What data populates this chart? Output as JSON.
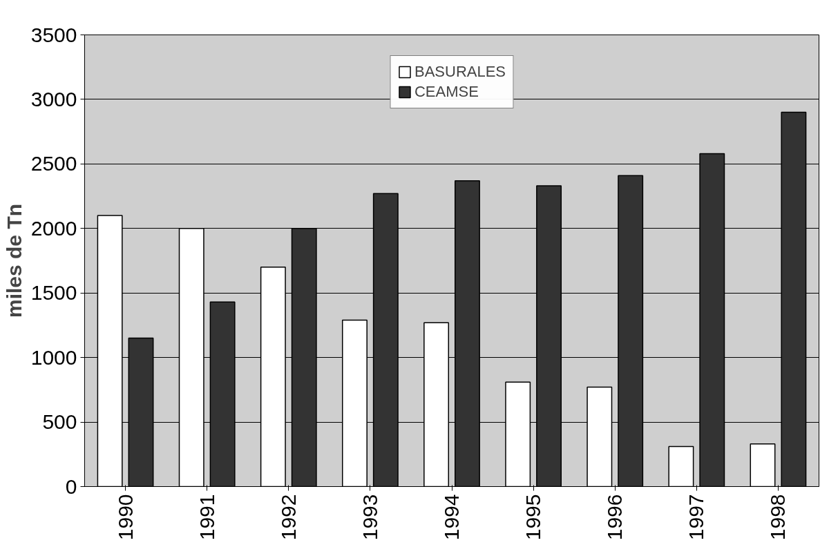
{
  "chart_data": {
    "type": "bar",
    "ylabel": "miles de Tn",
    "categories": [
      "1990",
      "1991",
      "1992",
      "1993",
      "1994",
      "1995",
      "1996",
      "1997",
      "1998"
    ],
    "series": [
      {
        "name": "BASURALES",
        "color": "#ffffff",
        "values": [
          2100,
          2000,
          1700,
          1290,
          1270,
          810,
          770,
          310,
          330
        ]
      },
      {
        "name": "CEAMSE",
        "color": "#333333",
        "values": [
          1150,
          1430,
          2000,
          2270,
          2370,
          2330,
          2410,
          2580,
          2900
        ]
      }
    ],
    "ylim": [
      0,
      3500
    ],
    "yticks": [
      0,
      500,
      1000,
      1500,
      2000,
      2500,
      3000,
      3500
    ],
    "grid": "y",
    "legend": "top"
  }
}
